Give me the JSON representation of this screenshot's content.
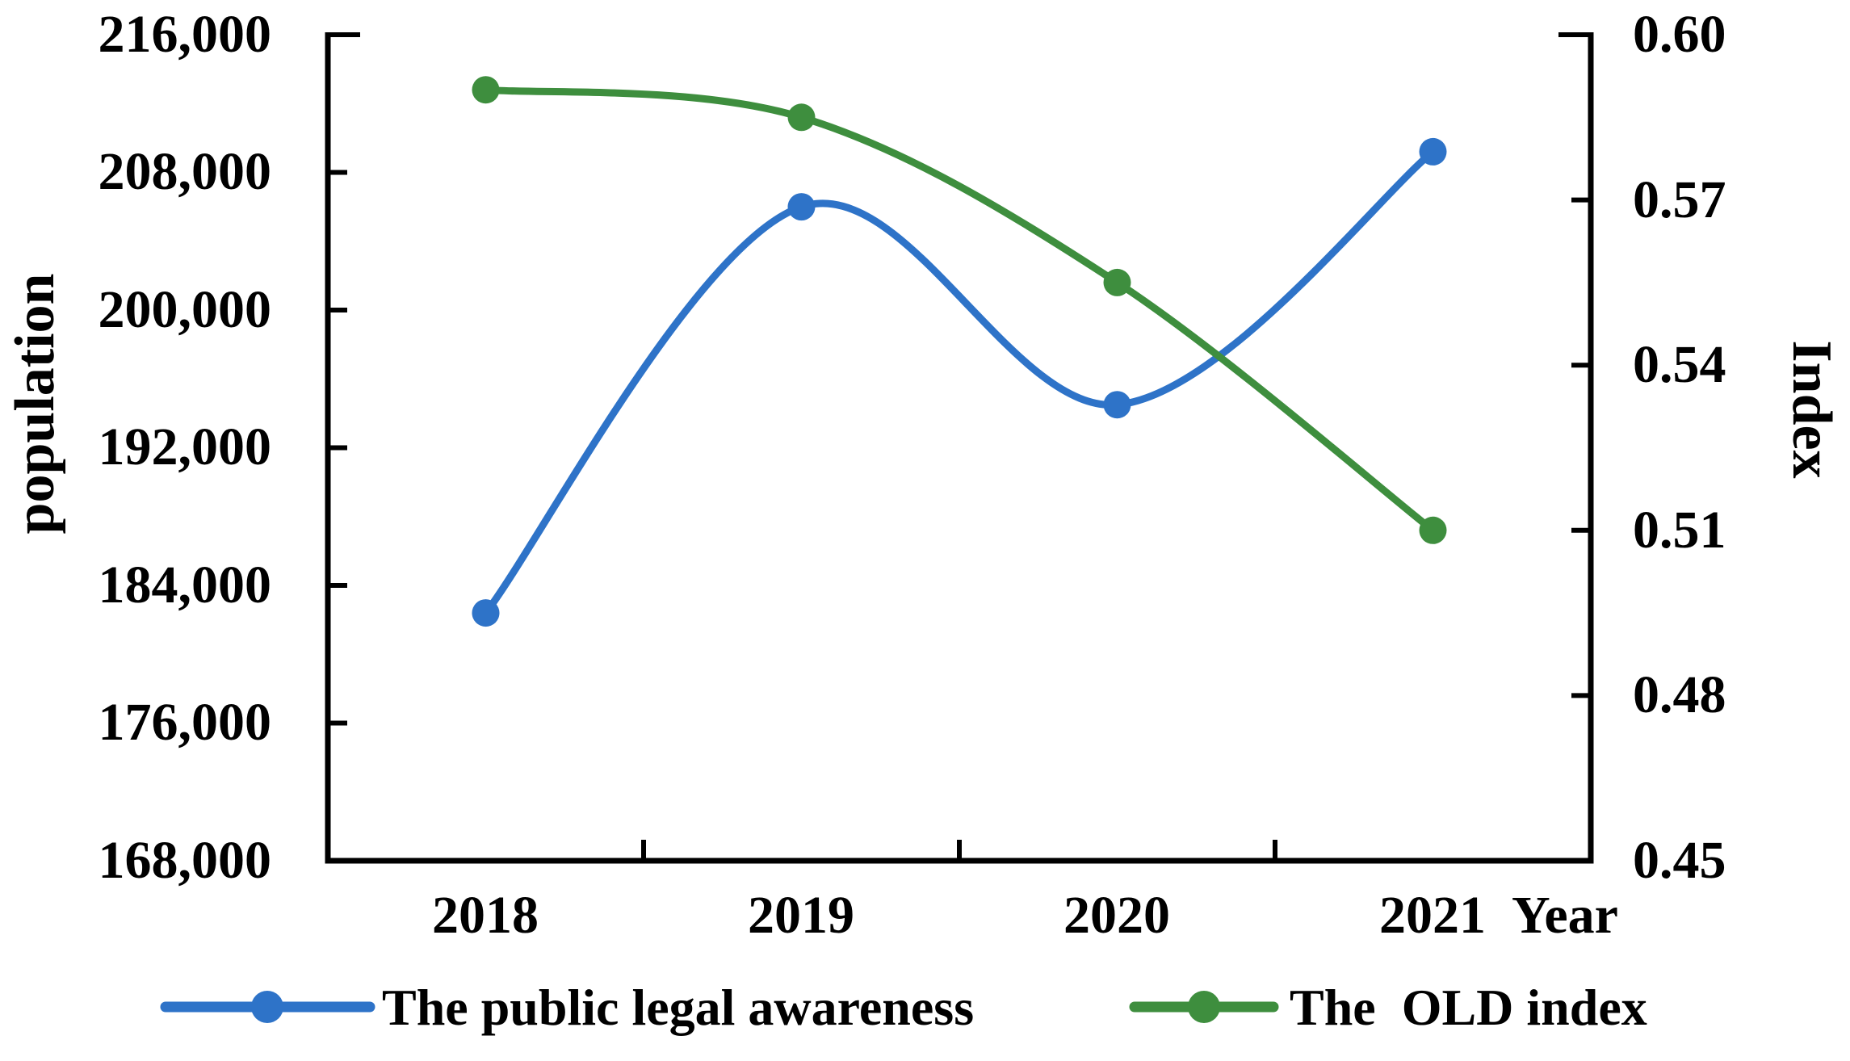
{
  "chart_data": {
    "type": "line",
    "smooth": true,
    "grid": false,
    "legend_position": "bottom",
    "categories": [
      "2018",
      "2019",
      "2020",
      "2021"
    ],
    "series": [
      {
        "name": "The public legal awareness",
        "axis": "left",
        "color": "#2E73C8",
        "marker": "circle",
        "values": [
          182400,
          206000,
          194500,
          209200
        ]
      },
      {
        "name": "The  OLD index",
        "axis": "right",
        "color": "#3E8E3E",
        "marker": "circle",
        "values": [
          0.59,
          0.585,
          0.555,
          0.51
        ]
      }
    ],
    "left_axis": {
      "label": "population",
      "min": 168000,
      "max": 216000,
      "step": 8000,
      "tick_labels": [
        "216,000",
        "208,000",
        "200,000",
        "192,000",
        "184,000",
        "176,000",
        "168,000"
      ]
    },
    "right_axis": {
      "label": "Index",
      "min": 0.45,
      "max": 0.6,
      "step": 0.03,
      "tick_labels": [
        "0.60",
        "0.57",
        "0.54",
        "0.51",
        "0.48",
        "0.45"
      ]
    },
    "x_axis": {
      "label": "Year",
      "tick_labels": [
        "2018",
        "2019",
        "2020",
        "2021"
      ]
    },
    "colors": {
      "axis": "#000000",
      "text": "#000000",
      "background": "#FFFFFF",
      "series_blue": "#2E73C8",
      "series_green": "#3E8E3E"
    }
  }
}
